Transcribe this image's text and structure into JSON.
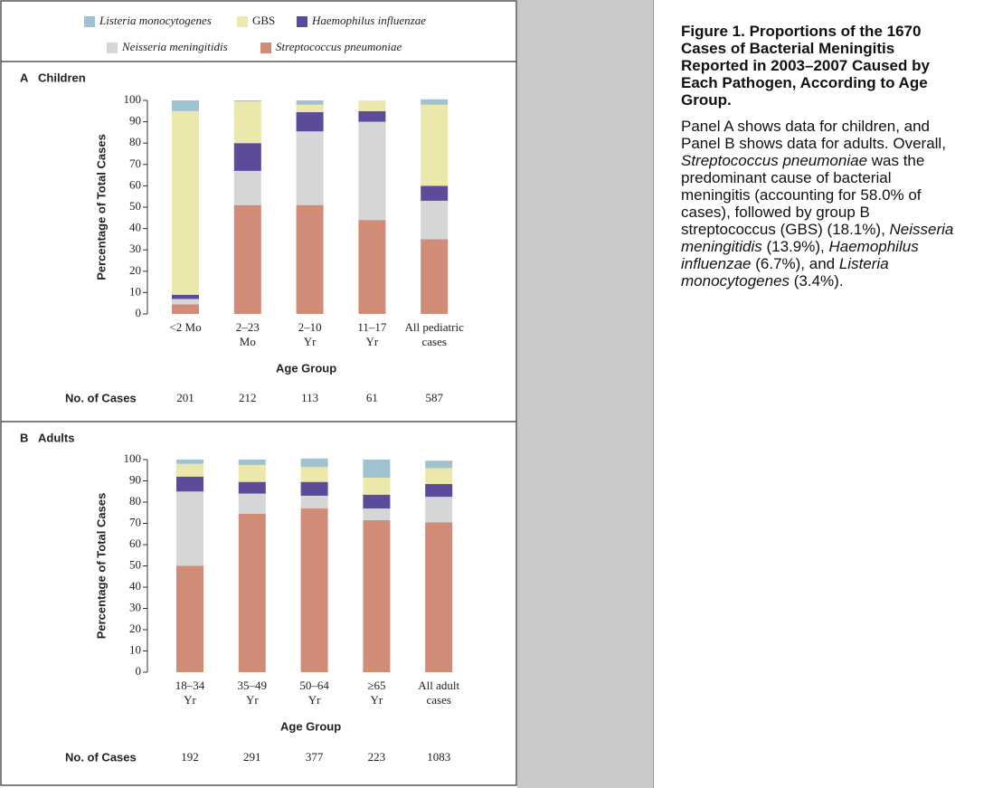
{
  "chart_data": [
    {
      "type": "stacked_bar",
      "panel": "A",
      "title": "Children",
      "categories": [
        "<2 Mo",
        "2–23\nMo",
        "2–10\nYr",
        "11–17\nYr",
        "All pediatric\ncases"
      ],
      "series": [
        {
          "name": "Streptococcus pneumoniae",
          "italic": true,
          "color": "#d18c78",
          "values": [
            4.5,
            51,
            51,
            44,
            35
          ]
        },
        {
          "name": "Neisseria meningitidis",
          "italic": true,
          "color": "#d4d6d8",
          "values": [
            2.5,
            16,
            34.5,
            46,
            18
          ]
        },
        {
          "name": "Haemophilus influenzae",
          "italic": true,
          "color": "#5c4b9b",
          "values": [
            2,
            13,
            9,
            5,
            7
          ]
        },
        {
          "name": "GBS",
          "italic": false,
          "color": "#ece7aa",
          "values": [
            86,
            19.5,
            3.5,
            5,
            38
          ]
        },
        {
          "name": "Listeria monocytogenes",
          "italic": true,
          "color": "#9fc2d1",
          "values": [
            5,
            0.5,
            2,
            0,
            2.5
          ]
        }
      ],
      "ylim": [
        0,
        100
      ],
      "yticks": [
        0,
        10,
        20,
        30,
        40,
        50,
        60,
        70,
        80,
        90,
        100
      ],
      "y_label": "Percentage of Total Cases",
      "x_label": "Age Group",
      "n_cases_label": "No. of Cases",
      "n_cases": [
        201,
        212,
        113,
        61,
        587
      ]
    },
    {
      "type": "stacked_bar",
      "panel": "B",
      "title": "Adults",
      "categories": [
        "18–34\nYr",
        "35–49\nYr",
        "50–64\nYr",
        "≥65\nYr",
        "All adult\ncases"
      ],
      "series": [
        {
          "color": "#d18c78",
          "values": [
            50,
            74.5,
            77,
            71.5,
            70.5
          ]
        },
        {
          "color": "#d4d6d8",
          "values": [
            35,
            9.5,
            6,
            5.5,
            12
          ]
        },
        {
          "color": "#5c4b9b",
          "values": [
            7,
            5.5,
            6.5,
            6.5,
            6
          ]
        },
        {
          "color": "#ece7aa",
          "values": [
            6,
            8,
            7,
            8,
            7.5
          ]
        },
        {
          "color": "#9fc2d1",
          "values": [
            2,
            2.5,
            4,
            8.5,
            3.5
          ]
        }
      ],
      "ylim": [
        0,
        100
      ],
      "yticks": [
        0,
        10,
        20,
        30,
        40,
        50,
        60,
        70,
        80,
        90,
        100
      ],
      "y_label": "Percentage of Total Cases",
      "x_label": "Age Group",
      "n_cases_label": "No. of Cases",
      "n_cases": [
        192,
        291,
        377,
        223,
        1083
      ]
    }
  ],
  "caption": {
    "title": "Figure 1. Proportions of the 1670 Cases of Bacterial Meningitis Reported in 2003–2007 Caused by Each Pathogen, According to Age Group.",
    "body": [
      {
        "text": "Panel A shows data for children, and Panel B shows data for adults. Overall, ",
        "italic": false
      },
      {
        "text": "Streptococcus pneumoniae",
        "italic": true
      },
      {
        "text": " was the predominant cause of bacterial meningitis (accounting for 58.0% of cases), followed by group B streptococcus (GBS) (18.1%), ",
        "italic": false
      },
      {
        "text": "Neisseria meningitidis",
        "italic": true
      },
      {
        "text": " (13.9%), ",
        "italic": false
      },
      {
        "text": "Haemophilus influenzae",
        "italic": true
      },
      {
        "text": " (6.7%), and ",
        "italic": false
      },
      {
        "text": "Listeria monocytogenes",
        "italic": true
      },
      {
        "text": " (3.4%).",
        "italic": false
      }
    ]
  }
}
